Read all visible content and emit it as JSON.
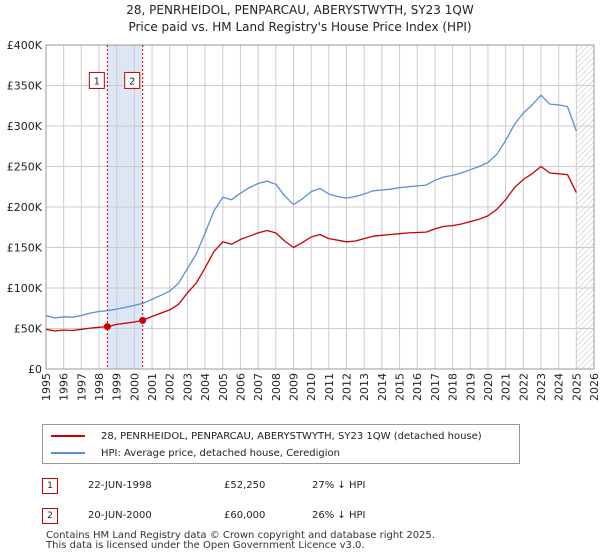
{
  "title_line1": "28, PENRHEIDOL, PENPARCAU, ABERYSTWYTH, SY23 1QW",
  "title_line2": "Price paid vs. HM Land Registry's House Price Index (HPI)",
  "chart_data": {
    "type": "line",
    "xlim": [
      1995,
      2026
    ],
    "ylim": [
      0,
      400000
    ],
    "y_ticks": [
      {
        "value": 0,
        "label": "£0"
      },
      {
        "value": 50000,
        "label": "£50K"
      },
      {
        "value": 100000,
        "label": "£100K"
      },
      {
        "value": 150000,
        "label": "£150K"
      },
      {
        "value": 200000,
        "label": "£200K"
      },
      {
        "value": 250000,
        "label": "£250K"
      },
      {
        "value": 300000,
        "label": "£300K"
      },
      {
        "value": 350000,
        "label": "£350K"
      },
      {
        "value": 400000,
        "label": "£400K"
      }
    ],
    "x_ticks": [
      "1995",
      "1996",
      "1997",
      "1998",
      "1999",
      "2000",
      "2001",
      "2002",
      "2003",
      "2004",
      "2005",
      "2006",
      "2007",
      "2008",
      "2009",
      "2010",
      "2011",
      "2012",
      "2013",
      "2014",
      "2015",
      "2016",
      "2017",
      "2018",
      "2019",
      "2020",
      "2021",
      "2022",
      "2023",
      "2024",
      "2025",
      "2026"
    ],
    "highlight_span": [
      1998.47,
      2000.47
    ],
    "hatch_from": 2025.0,
    "series": [
      {
        "name": "28, PENRHEIDOL, PENPARCAU, ABERYSTWYTH, SY23 1QW (detached house)",
        "color": "#cc0000",
        "points": [
          [
            1995.0,
            49000
          ],
          [
            1995.5,
            47000
          ],
          [
            1996.0,
            48000
          ],
          [
            1996.5,
            47500
          ],
          [
            1997.0,
            49000
          ],
          [
            1997.5,
            50500
          ],
          [
            1998.0,
            51500
          ],
          [
            1998.47,
            52250
          ],
          [
            1999.0,
            55000
          ],
          [
            1999.5,
            56500
          ],
          [
            2000.0,
            58000
          ],
          [
            2000.47,
            60000
          ],
          [
            2001.0,
            65000
          ],
          [
            2001.5,
            69000
          ],
          [
            2002.0,
            73000
          ],
          [
            2002.5,
            80000
          ],
          [
            2003.0,
            94000
          ],
          [
            2003.5,
            106000
          ],
          [
            2004.0,
            125000
          ],
          [
            2004.5,
            145000
          ],
          [
            2005.0,
            157000
          ],
          [
            2005.5,
            154000
          ],
          [
            2006.0,
            160000
          ],
          [
            2006.5,
            164000
          ],
          [
            2007.0,
            168000
          ],
          [
            2007.5,
            171000
          ],
          [
            2008.0,
            168000
          ],
          [
            2008.5,
            158000
          ],
          [
            2009.0,
            150000
          ],
          [
            2009.5,
            156000
          ],
          [
            2010.0,
            163000
          ],
          [
            2010.5,
            166000
          ],
          [
            2011.0,
            161000
          ],
          [
            2011.5,
            159000
          ],
          [
            2012.0,
            157000
          ],
          [
            2012.5,
            158000
          ],
          [
            2013.0,
            161000
          ],
          [
            2013.5,
            164000
          ],
          [
            2014.0,
            165000
          ],
          [
            2014.5,
            166000
          ],
          [
            2015.0,
            167000
          ],
          [
            2015.5,
            168000
          ],
          [
            2016.0,
            168500
          ],
          [
            2016.5,
            169000
          ],
          [
            2017.0,
            173000
          ],
          [
            2017.5,
            176000
          ],
          [
            2018.0,
            177000
          ],
          [
            2018.5,
            179000
          ],
          [
            2019.0,
            182000
          ],
          [
            2019.5,
            185000
          ],
          [
            2020.0,
            189000
          ],
          [
            2020.5,
            197000
          ],
          [
            2021.0,
            209000
          ],
          [
            2021.5,
            224000
          ],
          [
            2022.0,
            234000
          ],
          [
            2022.5,
            241000
          ],
          [
            2023.0,
            250000
          ],
          [
            2023.5,
            242000
          ],
          [
            2024.0,
            241000
          ],
          [
            2024.5,
            240000
          ],
          [
            2025.0,
            218000
          ]
        ]
      },
      {
        "name": "HPI: Average price, detached house, Ceredigion",
        "color": "#5b8ed6",
        "points": [
          [
            1995.0,
            66000
          ],
          [
            1995.5,
            63000
          ],
          [
            1996.0,
            64500
          ],
          [
            1996.5,
            64000
          ],
          [
            1997.0,
            66000
          ],
          [
            1997.5,
            69000
          ],
          [
            1998.0,
            71000
          ],
          [
            1998.47,
            72000
          ],
          [
            1999.0,
            74000
          ],
          [
            1999.5,
            76000
          ],
          [
            2000.0,
            78500
          ],
          [
            2000.47,
            81000
          ],
          [
            2001.0,
            86000
          ],
          [
            2001.5,
            91000
          ],
          [
            2002.0,
            96000
          ],
          [
            2002.5,
            106000
          ],
          [
            2003.0,
            124000
          ],
          [
            2003.5,
            142000
          ],
          [
            2004.0,
            168000
          ],
          [
            2004.5,
            195000
          ],
          [
            2005.0,
            212000
          ],
          [
            2005.5,
            209000
          ],
          [
            2006.0,
            217000
          ],
          [
            2006.5,
            224000
          ],
          [
            2007.0,
            229000
          ],
          [
            2007.5,
            232000
          ],
          [
            2008.0,
            228000
          ],
          [
            2008.5,
            214000
          ],
          [
            2009.0,
            203000
          ],
          [
            2009.5,
            210000
          ],
          [
            2010.0,
            219000
          ],
          [
            2010.5,
            223000
          ],
          [
            2011.0,
            216000
          ],
          [
            2011.5,
            213000
          ],
          [
            2012.0,
            211000
          ],
          [
            2012.5,
            213000
          ],
          [
            2013.0,
            216000
          ],
          [
            2013.5,
            220000
          ],
          [
            2014.0,
            221000
          ],
          [
            2014.5,
            222000
          ],
          [
            2015.0,
            224000
          ],
          [
            2015.5,
            225000
          ],
          [
            2016.0,
            226000
          ],
          [
            2016.5,
            227000
          ],
          [
            2017.0,
            233000
          ],
          [
            2017.5,
            237000
          ],
          [
            2018.0,
            239000
          ],
          [
            2018.5,
            242000
          ],
          [
            2019.0,
            246000
          ],
          [
            2019.5,
            250000
          ],
          [
            2020.0,
            255000
          ],
          [
            2020.5,
            265000
          ],
          [
            2021.0,
            282000
          ],
          [
            2021.5,
            302000
          ],
          [
            2022.0,
            316000
          ],
          [
            2022.5,
            326000
          ],
          [
            2023.0,
            338000
          ],
          [
            2023.5,
            327000
          ],
          [
            2024.0,
            326000
          ],
          [
            2024.5,
            324000
          ],
          [
            2025.0,
            294000
          ]
        ]
      }
    ],
    "sales": [
      {
        "id": "1",
        "x": 1998.47,
        "value": 52250
      },
      {
        "id": "2",
        "x": 2000.47,
        "value": 60000
      }
    ]
  },
  "legend": {
    "red_label": "28, PENRHEIDOL, PENPARCAU, ABERYSTWYTH, SY23 1QW (detached house)",
    "blue_label": "HPI: Average price, detached house, Ceredigion"
  },
  "transactions": [
    {
      "id": "1",
      "date": "22-JUN-1998",
      "price": "£52,250",
      "hpi": "27% ↓ HPI"
    },
    {
      "id": "2",
      "date": "20-JUN-2000",
      "price": "£60,000",
      "hpi": "26% ↓ HPI"
    }
  ],
  "footer": {
    "line1": "Contains HM Land Registry data © Crown copyright and database right 2025.",
    "line2": "This data is licensed under the Open Government Licence v3.0."
  },
  "colors": {
    "red": "#cc0000",
    "blue": "#5b8ed6",
    "highlight": "#dde6f5",
    "grid": "#cccccc"
  }
}
